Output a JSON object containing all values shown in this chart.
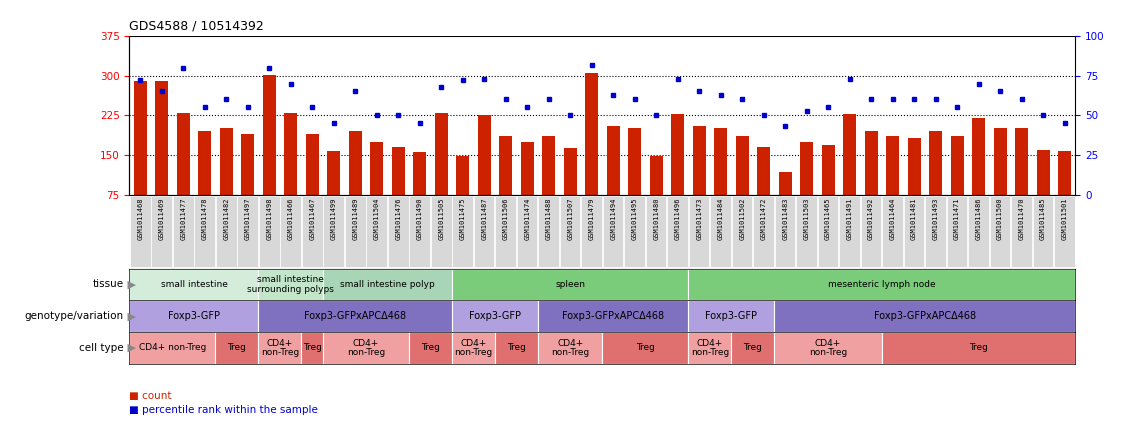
{
  "title": "GDS4588 / 10514392",
  "samples": [
    "GSM1011468",
    "GSM1011469",
    "GSM1011477",
    "GSM1011478",
    "GSM1011482",
    "GSM1011497",
    "GSM1011498",
    "GSM1011466",
    "GSM1011467",
    "GSM1011499",
    "GSM1011489",
    "GSM1011504",
    "GSM1011476",
    "GSM1011490",
    "GSM1011505",
    "GSM1011475",
    "GSM1011487",
    "GSM1011506",
    "GSM1011474",
    "GSM1011488",
    "GSM1011507",
    "GSM1011479",
    "GSM1011494",
    "GSM1011495",
    "GSM1011480",
    "GSM1011496",
    "GSM1011473",
    "GSM1011484",
    "GSM1011502",
    "GSM1011472",
    "GSM1011483",
    "GSM1011503",
    "GSM1011465",
    "GSM1011491",
    "GSM1011492",
    "GSM1011464",
    "GSM1011481",
    "GSM1011493",
    "GSM1011471",
    "GSM1011486",
    "GSM1011500",
    "GSM1011470",
    "GSM1011485",
    "GSM1011501"
  ],
  "counts": [
    290,
    290,
    230,
    195,
    200,
    190,
    302,
    230,
    190,
    158,
    195,
    175,
    165,
    155,
    230,
    148,
    225,
    185,
    175,
    185,
    163,
    305,
    205,
    200,
    148,
    228,
    205,
    200,
    185,
    165,
    118,
    175,
    168,
    228,
    195,
    185,
    182,
    195,
    185,
    220,
    200,
    200,
    160,
    158
  ],
  "percentiles": [
    72,
    65,
    80,
    55,
    60,
    55,
    80,
    70,
    55,
    45,
    65,
    50,
    50,
    45,
    68,
    72,
    73,
    60,
    55,
    60,
    50,
    82,
    63,
    60,
    50,
    73,
    65,
    63,
    60,
    50,
    43,
    53,
    55,
    73,
    60,
    60,
    60,
    60,
    55,
    70,
    65,
    60,
    50,
    45
  ],
  "bar_color": "#cc2200",
  "dot_color": "#0000cc",
  "ylim_left": [
    75,
    375
  ],
  "ylim_right": [
    0,
    100
  ],
  "yticks_left": [
    75,
    150,
    225,
    300,
    375
  ],
  "yticks_right": [
    0,
    25,
    50,
    75,
    100
  ],
  "hlines": [
    150,
    225,
    300
  ],
  "tissue_groups": [
    {
      "label": "small intestine",
      "start": 0,
      "end": 6,
      "color": "#d4edda"
    },
    {
      "label": "small intestine\nsurrounding polyps",
      "start": 6,
      "end": 9,
      "color": "#c3e6cb"
    },
    {
      "label": "small intestine polyp",
      "start": 9,
      "end": 15,
      "color": "#a8d5b5"
    },
    {
      "label": "spleen",
      "start": 15,
      "end": 26,
      "color": "#7acc7a"
    },
    {
      "label": "mesenteric lymph node",
      "start": 26,
      "end": 44,
      "color": "#7acc7a"
    }
  ],
  "genotype_groups": [
    {
      "label": "Foxp3-GFP",
      "start": 0,
      "end": 6,
      "color": "#b0a0e0"
    },
    {
      "label": "Foxp3-GFPxAPCΔ468",
      "start": 6,
      "end": 15,
      "color": "#8070c0"
    },
    {
      "label": "Foxp3-GFP",
      "start": 15,
      "end": 19,
      "color": "#b0a0e0"
    },
    {
      "label": "Foxp3-GFPxAPCΔ468",
      "start": 19,
      "end": 26,
      "color": "#8070c0"
    },
    {
      "label": "Foxp3-GFP",
      "start": 26,
      "end": 30,
      "color": "#b0a0e0"
    },
    {
      "label": "Foxp3-GFPxAPCΔ468",
      "start": 30,
      "end": 44,
      "color": "#8070c0"
    }
  ],
  "celltype_groups": [
    {
      "label": "CD4+ non-Treg",
      "start": 0,
      "end": 4,
      "color": "#f0a0a0"
    },
    {
      "label": "Treg",
      "start": 4,
      "end": 6,
      "color": "#e07070"
    },
    {
      "label": "CD4+\nnon-Treg",
      "start": 6,
      "end": 8,
      "color": "#f0a0a0"
    },
    {
      "label": "Treg",
      "start": 8,
      "end": 9,
      "color": "#e07070"
    },
    {
      "label": "CD4+\nnon-Treg",
      "start": 9,
      "end": 13,
      "color": "#f0a0a0"
    },
    {
      "label": "Treg",
      "start": 13,
      "end": 15,
      "color": "#e07070"
    },
    {
      "label": "CD4+\nnon-Treg",
      "start": 15,
      "end": 17,
      "color": "#f0a0a0"
    },
    {
      "label": "Treg",
      "start": 17,
      "end": 19,
      "color": "#e07070"
    },
    {
      "label": "CD4+\nnon-Treg",
      "start": 19,
      "end": 22,
      "color": "#f0a0a0"
    },
    {
      "label": "Treg",
      "start": 22,
      "end": 26,
      "color": "#e07070"
    },
    {
      "label": "CD4+\nnon-Treg",
      "start": 26,
      "end": 28,
      "color": "#f0a0a0"
    },
    {
      "label": "Treg",
      "start": 28,
      "end": 30,
      "color": "#e07070"
    },
    {
      "label": "CD4+\nnon-Treg",
      "start": 30,
      "end": 35,
      "color": "#f0a0a0"
    },
    {
      "label": "Treg",
      "start": 35,
      "end": 44,
      "color": "#e07070"
    }
  ],
  "row_labels": [
    "tissue",
    "genotype/variation",
    "cell type"
  ],
  "legend_items": [
    {
      "color": "#cc2200",
      "label": "count"
    },
    {
      "color": "#0000cc",
      "label": "percentile rank within the sample"
    }
  ],
  "tick_bg": "#d8d8d8",
  "label_arrow_color": "#888888"
}
